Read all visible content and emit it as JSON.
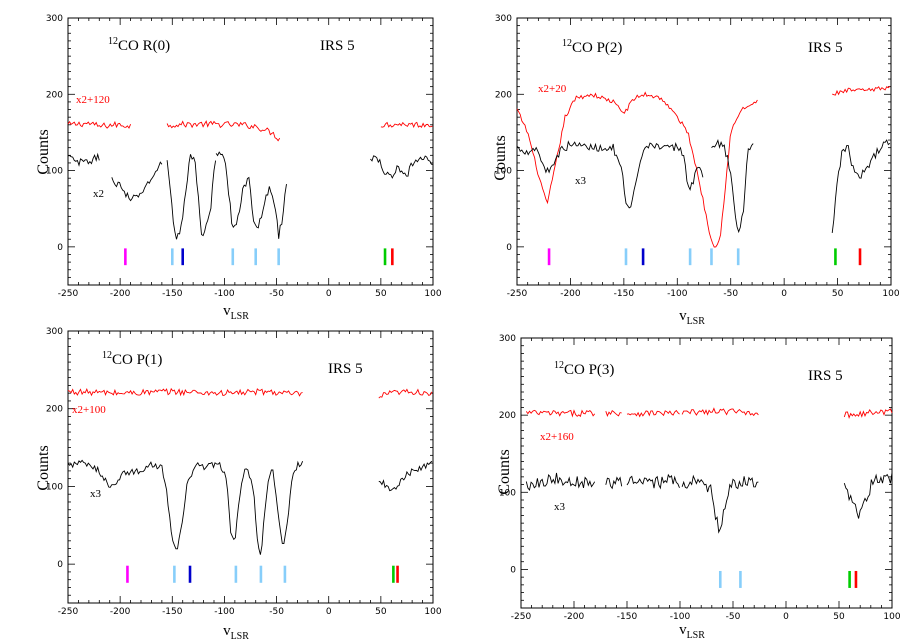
{
  "chart_data": [
    {
      "type": "line",
      "iso": "12",
      "transition": "CO R(0)",
      "source": "IRS 5",
      "xlabel": "v",
      "xlabel_sub": "LSR",
      "ylabel": "Counts",
      "xlim": [
        -250,
        100
      ],
      "ylim": [
        -50,
        300
      ],
      "xticks": [
        -250,
        -200,
        -150,
        -100,
        -50,
        0,
        50,
        100
      ],
      "xtick_labels": [
        "-250",
        "-200",
        "-150",
        "-100",
        "-50",
        "0",
        "50",
        "100"
      ],
      "yticks": [
        0,
        100,
        200,
        300
      ],
      "ytick_labels": [
        "0",
        "100",
        "200",
        "300"
      ],
      "scaled_label": "x2+120",
      "obs_label": "x2",
      "series": [
        {
          "name": "x2+120",
          "color": "#ff0000",
          "noise": 4,
          "segments": [
            {
              "x": [
                -250,
                -230,
                -220,
                -205,
                -190
              ],
              "y": [
                160,
                162,
                158,
                160,
                159
              ]
            },
            {
              "x": [
                -155,
                -120,
                -85,
                -70,
                -55,
                -46
              ],
              "y": [
                160,
                161,
                160,
                158,
                150,
                140
              ]
            },
            {
              "x": [
                50,
                70,
                90,
                100
              ],
              "y": [
                160,
                161,
                160,
                161
              ]
            }
          ]
        },
        {
          "name": "x2",
          "color": "#000000",
          "noise": 5,
          "segments": [
            {
              "x": [
                -250,
                -240,
                -230,
                -220
              ],
              "y": [
                118,
                110,
                112,
                118
              ]
            },
            {
              "x": [
                -208,
                -200,
                -190,
                -180,
                -170,
                -160
              ],
              "y": [
                88,
                80,
                60,
                70,
                90,
                110
              ]
            },
            {
              "x": [
                -155,
                -150,
                -147,
                -143,
                -138,
                -133,
                -128,
                -122,
                -114,
                -108
              ],
              "y": [
                115,
                50,
                12,
                15,
                60,
                120,
                110,
                15,
                40,
                125
              ]
            },
            {
              "x": [
                -108,
                -100,
                -95,
                -92,
                -88,
                -82,
                -76,
                -72,
                -68,
                -62,
                -56,
                -52,
                -48,
                -44,
                -40
              ],
              "y": [
                125,
                118,
                60,
                20,
                30,
                80,
                90,
                30,
                18,
                60,
                80,
                55,
                15,
                40,
                90
              ]
            },
            {
              "x": [
                40,
                50,
                55,
                60,
                65,
                70,
                75,
                80,
                90,
                100
              ],
              "y": [
                118,
                110,
                95,
                90,
                105,
                95,
                90,
                110,
                115,
                112
              ]
            }
          ]
        }
      ],
      "markers": [
        {
          "x": -195,
          "color": "#ff00ff"
        },
        {
          "x": -150,
          "color": "#87cefa"
        },
        {
          "x": -140,
          "color": "#0000cc"
        },
        {
          "x": -92,
          "color": "#87cefa"
        },
        {
          "x": -70,
          "color": "#87cefa"
        },
        {
          "x": -48,
          "color": "#87cefa"
        },
        {
          "x": 54,
          "color": "#00cc00"
        },
        {
          "x": 61,
          "color": "#ff0000"
        }
      ]
    },
    {
      "type": "line",
      "iso": "12",
      "transition": "CO P(2)",
      "source": "IRS 5",
      "xlabel": "v",
      "xlabel_sub": "LSR",
      "ylabel": "Counts",
      "xlim": [
        -250,
        100
      ],
      "ylim": [
        -50,
        300
      ],
      "xticks": [
        -250,
        -200,
        -150,
        -100,
        -50,
        0,
        50,
        100
      ],
      "xtick_labels": [
        "-250",
        "-200",
        "-150",
        "-100",
        "-50",
        "0",
        "50",
        "100"
      ],
      "yticks": [
        0,
        100,
        200,
        300
      ],
      "ytick_labels": [
        "0",
        "100",
        "200",
        "300"
      ],
      "scaled_label": "x2+20",
      "obs_label": "x3",
      "series": [
        {
          "name": "x2+20",
          "color": "#ff0000",
          "noise": 3,
          "segments": [
            {
              "x": [
                -250,
                -240,
                -230,
                -222,
                -215,
                -205,
                -195,
                -180,
                -160,
                -150,
                -140,
                -130,
                -115,
                -100,
                -90,
                -80,
                -70,
                -65,
                -60,
                -55,
                -50,
                -40,
                -25
              ],
              "y": [
                180,
                150,
                95,
                55,
                100,
                170,
                195,
                200,
                190,
                175,
                195,
                200,
                195,
                170,
                150,
                90,
                20,
                0,
                10,
                80,
                150,
                180,
                190
              ]
            },
            {
              "x": [
                45,
                60,
                80,
                100
              ],
              "y": [
                200,
                205,
                205,
                210
              ]
            }
          ]
        },
        {
          "name": "x3",
          "color": "#000000",
          "noise": 5,
          "segments": [
            {
              "x": [
                -250,
                -240,
                -232,
                -226,
                -222,
                -216,
                -210,
                -200,
                -180,
                -160,
                -152,
                -148,
                -144,
                -138,
                -130,
                -120,
                -110,
                -100,
                -94,
                -90,
                -86,
                -82,
                -78,
                -75
              ],
              "y": [
                130,
                125,
                130,
                110,
                98,
                110,
                125,
                135,
                130,
                130,
                100,
                55,
                45,
                90,
                130,
                135,
                128,
                132,
                120,
                80,
                80,
                100,
                110,
                78
              ]
            },
            {
              "x": [
                -68,
                -62,
                -56,
                -50,
                -46,
                -42,
                -38,
                -34,
                -28
              ],
              "y": [
                130,
                135,
                130,
                100,
                40,
                15,
                50,
                130,
                132
              ]
            },
            {
              "x": [
                45,
                50,
                55,
                60,
                65,
                70,
                80,
                90,
                100
              ],
              "y": [
                15,
                90,
                130,
                128,
                100,
                88,
                110,
                130,
                140
              ]
            }
          ]
        }
      ],
      "markers": [
        {
          "x": -220,
          "color": "#ff00ff"
        },
        {
          "x": -148,
          "color": "#87cefa"
        },
        {
          "x": -132,
          "color": "#0000cc"
        },
        {
          "x": -88,
          "color": "#87cefa"
        },
        {
          "x": -68,
          "color": "#87cefa"
        },
        {
          "x": -43,
          "color": "#87cefa"
        },
        {
          "x": 48,
          "color": "#00cc00"
        },
        {
          "x": 71,
          "color": "#ff0000"
        }
      ]
    },
    {
      "type": "line",
      "iso": "12",
      "transition": "CO P(1)",
      "source": "IRS 5",
      "xlabel": "v",
      "xlabel_sub": "LSR",
      "ylabel": "Counts",
      "xlim": [
        -250,
        100
      ],
      "ylim": [
        -50,
        300
      ],
      "xticks": [
        -250,
        -200,
        -150,
        -100,
        -50,
        0,
        50,
        100
      ],
      "xtick_labels": [
        "-250",
        "-200",
        "-150",
        "-100",
        "-50",
        "0",
        "50",
        "100"
      ],
      "yticks": [
        0,
        100,
        200,
        300
      ],
      "ytick_labels": [
        "0",
        "100",
        "200",
        "300"
      ],
      "scaled_label": "x2+100",
      "obs_label": "x3",
      "series": [
        {
          "name": "x2+100",
          "color": "#ff0000",
          "noise": 4,
          "segments": [
            {
              "x": [
                -250,
                -200,
                -150,
                -100,
                -60,
                -25
              ],
              "y": [
                222,
                220,
                222,
                220,
                222,
                218
              ]
            },
            {
              "x": [
                48,
                60,
                80,
                100
              ],
              "y": [
                215,
                220,
                222,
                220
              ]
            }
          ]
        },
        {
          "name": "x3",
          "color": "#000000",
          "noise": 4,
          "segments": [
            {
              "x": [
                -250,
                -235,
                -220,
                -210,
                -205,
                -195,
                -180,
                -170,
                -160,
                -155,
                -150,
                -146,
                -142,
                -136,
                -128,
                -118,
                -105,
                -98,
                -94,
                -90,
                -86,
                -80,
                -72,
                -68,
                -65,
                -60,
                -54,
                -48,
                -44,
                -40,
                -35,
                -30,
                -25
              ],
              "y": [
                128,
                130,
                120,
                100,
                105,
                118,
                120,
                128,
                125,
                90,
                30,
                15,
                40,
                100,
                128,
                125,
                130,
                110,
                40,
                30,
                80,
                128,
                95,
                20,
                10,
                90,
                128,
                60,
                18,
                50,
                110,
                128,
                130
              ]
            },
            {
              "x": [
                48,
                55,
                60,
                65,
                70,
                80,
                90,
                100
              ],
              "y": [
                110,
                100,
                95,
                100,
                110,
                120,
                125,
                130
              ]
            }
          ]
        }
      ],
      "markers": [
        {
          "x": -193,
          "color": "#ff00ff"
        },
        {
          "x": -148,
          "color": "#87cefa"
        },
        {
          "x": -133,
          "color": "#0000cc"
        },
        {
          "x": -89,
          "color": "#87cefa"
        },
        {
          "x": -65,
          "color": "#87cefa"
        },
        {
          "x": -42,
          "color": "#87cefa"
        },
        {
          "x": 62,
          "color": "#00cc00"
        },
        {
          "x": 66,
          "color": "#ff0000"
        }
      ]
    },
    {
      "type": "line",
      "iso": "12",
      "transition": "CO P(3)",
      "source": "IRS 5",
      "xlabel": "v",
      "xlabel_sub": "LSR",
      "ylabel": "Counts",
      "xlim": [
        -250,
        100
      ],
      "ylim": [
        -50,
        300
      ],
      "xticks": [
        -250,
        -200,
        -150,
        -100,
        -50,
        0,
        50,
        100
      ],
      "xtick_labels": [
        "-250",
        "-200",
        "-150",
        "-100",
        "-50",
        "0",
        "50",
        "100"
      ],
      "yticks": [
        0,
        100,
        200,
        300
      ],
      "ytick_labels": [
        "0",
        "100",
        "200",
        "300"
      ],
      "scaled_label": "x2+160",
      "obs_label": "x3",
      "series": [
        {
          "name": "x2+160",
          "color": "#ff0000",
          "noise": 4,
          "segments": [
            {
              "x": [
                -245,
                -210,
                -180
              ],
              "y": [
                203,
                202,
                203
              ]
            },
            {
              "x": [
                -170,
                -155
              ],
              "y": [
                203,
                203
              ]
            },
            {
              "x": [
                -150,
                -120,
                -100
              ],
              "y": [
                202,
                203,
                202
              ]
            },
            {
              "x": [
                -98,
                -60,
                -25
              ],
              "y": [
                203,
                205,
                203
              ]
            },
            {
              "x": [
                55,
                80,
                100
              ],
              "y": [
                200,
                203,
                205
              ]
            }
          ]
        },
        {
          "name": "x3",
          "color": "#000000",
          "noise": 8,
          "segments": [
            {
              "x": [
                -245,
                -220,
                -200,
                -180
              ],
              "y": [
                110,
                118,
                115,
                112
              ]
            },
            {
              "x": [
                -170,
                -155
              ],
              "y": [
                110,
                115
              ]
            },
            {
              "x": [
                -150,
                -130,
                -110,
                -100
              ],
              "y": [
                115,
                110,
                116,
                110
              ]
            },
            {
              "x": [
                -98,
                -80,
                -70,
                -65,
                -62,
                -58,
                -52,
                -40,
                -25
              ],
              "y": [
                112,
                115,
                100,
                60,
                45,
                80,
                110,
                115,
                110
              ]
            },
            {
              "x": [
                55,
                62,
                68,
                72,
                76,
                80,
                90,
                100
              ],
              "y": [
                105,
                85,
                70,
                80,
                90,
                110,
                120,
                118
              ]
            }
          ]
        }
      ],
      "markers": [
        {
          "x": -62,
          "color": "#87cefa"
        },
        {
          "x": -43,
          "color": "#87cefa"
        },
        {
          "x": 60,
          "color": "#00cc00"
        },
        {
          "x": 66,
          "color": "#ff0000"
        }
      ]
    }
  ]
}
